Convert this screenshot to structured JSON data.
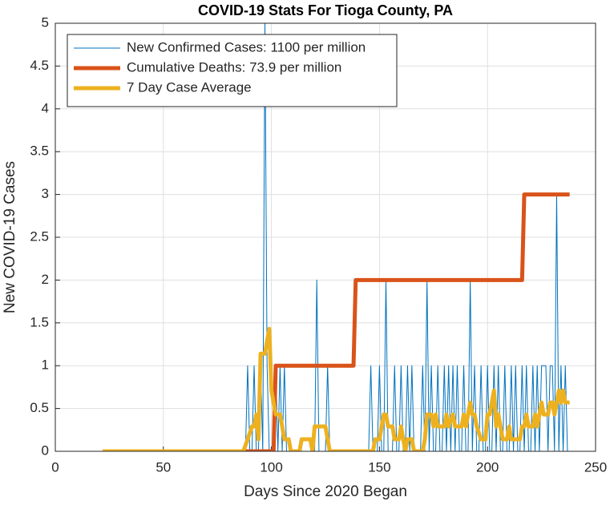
{
  "chart_data": {
    "type": "line",
    "title": "COVID-19 Stats For Tioga County, PA",
    "xlabel": "Days Since 2020 Began",
    "ylabel": "New COVID-19 Cases",
    "xlim": [
      0,
      250
    ],
    "xticks": [
      0,
      50,
      100,
      150,
      200,
      250
    ],
    "ylim": [
      0,
      5
    ],
    "yticks": [
      0,
      0.5,
      1,
      1.5,
      2,
      2.5,
      3,
      3.5,
      4,
      4.5,
      5
    ],
    "grid": true,
    "legend": "upper left",
    "series": [
      {
        "name": "New Confirmed Cases: 1100 per million",
        "color": "#0072BD",
        "width": 1,
        "x": [
          22,
          86,
          87,
          88,
          89,
          90,
          91,
          92,
          93,
          94,
          95,
          96,
          97,
          98,
          99,
          100,
          101,
          102,
          103,
          104,
          105,
          106,
          107,
          108,
          109,
          110,
          111,
          112,
          113,
          114,
          115,
          116,
          117,
          118,
          119,
          120,
          121,
          122,
          123,
          124,
          125,
          126,
          127,
          128,
          129,
          130,
          131,
          132,
          133,
          134,
          135,
          136,
          137,
          138,
          139,
          140,
          141,
          142,
          143,
          144,
          145,
          146,
          147,
          148,
          149,
          150,
          151,
          152,
          153,
          154,
          155,
          156,
          157,
          158,
          159,
          160,
          161,
          162,
          163,
          164,
          165,
          166,
          167,
          168,
          169,
          170,
          171,
          172,
          173,
          174,
          175,
          176,
          177,
          178,
          179,
          180,
          181,
          182,
          183,
          184,
          185,
          186,
          187,
          188,
          189,
          190,
          191,
          192,
          193,
          194,
          195,
          196,
          197,
          198,
          199,
          200,
          201,
          202,
          203,
          204,
          205,
          206,
          207,
          208,
          209,
          210,
          211,
          212,
          213,
          214,
          215,
          216,
          217,
          218,
          219,
          220,
          221,
          222,
          223,
          224,
          225,
          226,
          227,
          228,
          229,
          230,
          231,
          232,
          233,
          234,
          235,
          236,
          237,
          238
        ],
        "values": [
          0,
          0,
          0,
          0,
          1,
          0,
          0,
          1,
          0,
          0,
          1,
          0,
          5,
          1,
          0,
          0,
          0,
          1,
          0,
          1,
          0,
          1,
          0,
          0,
          0,
          0,
          0,
          0,
          0,
          0,
          0,
          0,
          0,
          0,
          0,
          0,
          2,
          0,
          0,
          0,
          0,
          1,
          0,
          0,
          0,
          0,
          0,
          0,
          0,
          0,
          0,
          0,
          0,
          0,
          0,
          0,
          0,
          0,
          0,
          0,
          0,
          1,
          0,
          0,
          0,
          1,
          0,
          0,
          2,
          0,
          0,
          0,
          1,
          0,
          0,
          1,
          0,
          0,
          1,
          0,
          1,
          0,
          0,
          0,
          0,
          1,
          0,
          2,
          0,
          1,
          0,
          0,
          1,
          0,
          0,
          1,
          0,
          1,
          0,
          1,
          0,
          1,
          0,
          0,
          1,
          0,
          0,
          2,
          0,
          1,
          0,
          0,
          1,
          0,
          0,
          1,
          0,
          0,
          1,
          0,
          1,
          0,
          0,
          1,
          0,
          0,
          1,
          0,
          1,
          0,
          0,
          1,
          0,
          1,
          0,
          0,
          1,
          0,
          1,
          0,
          1,
          1,
          1,
          0,
          1,
          1,
          0,
          3,
          0,
          1,
          0,
          1,
          0,
          0
        ]
      },
      {
        "name": "Cumulative Deaths: 73.9 per million",
        "color": "#D95319",
        "width": 5,
        "x": [
          22,
          101,
          102,
          138,
          139,
          216,
          217,
          238
        ],
        "values": [
          0,
          0,
          1,
          1,
          2,
          2,
          3,
          3
        ]
      },
      {
        "name": "7 Day Case Average",
        "color": "#EDB120",
        "width": 5,
        "x": [
          22,
          87,
          89,
          91,
          92,
          93,
          94,
          95,
          96,
          97,
          98,
          99,
          100,
          101,
          102,
          103,
          104,
          105,
          106,
          108,
          109,
          113,
          114,
          118,
          119,
          120,
          125,
          127,
          147,
          148,
          150,
          152,
          153,
          154,
          156,
          157,
          159,
          160,
          161,
          162,
          163,
          165,
          166,
          170,
          171,
          172,
          174,
          175,
          176,
          177,
          180,
          181,
          182,
          184,
          185,
          188,
          189,
          190,
          191,
          192,
          193,
          194,
          195,
          197,
          199,
          200,
          201,
          203,
          204,
          205,
          206,
          207,
          209,
          210,
          211,
          213,
          215,
          216,
          217,
          218,
          219,
          221,
          222,
          223,
          224,
          225,
          226,
          228,
          229,
          230,
          231,
          232,
          233,
          234,
          235,
          236,
          238
        ],
        "values": [
          0,
          0,
          0.14,
          0.29,
          0.29,
          0.43,
          0.14,
          1.14,
          1.14,
          1.14,
          1.29,
          1.43,
          0.71,
          0.57,
          0.43,
          0.43,
          0.43,
          0.29,
          0.14,
          0.14,
          0,
          0,
          0.14,
          0.14,
          0,
          0.29,
          0.29,
          0,
          0,
          0.14,
          0.14,
          0.43,
          0.43,
          0.29,
          0.29,
          0.14,
          0.14,
          0.29,
          0.14,
          0,
          0.14,
          0.14,
          0,
          0,
          0.14,
          0.43,
          0.43,
          0.29,
          0.43,
          0.29,
          0.29,
          0.43,
          0.29,
          0.43,
          0.29,
          0.29,
          0.43,
          0.29,
          0.43,
          0.57,
          0.43,
          0.43,
          0.29,
          0.14,
          0.14,
          0.43,
          0.43,
          0.71,
          0.29,
          0.43,
          0.29,
          0.14,
          0.14,
          0.29,
          0.14,
          0.14,
          0.14,
          0.29,
          0.29,
          0.43,
          0.29,
          0.29,
          0.43,
          0.29,
          0.43,
          0.57,
          0.43,
          0.43,
          0.57,
          0.57,
          0.43,
          0.57,
          0.71,
          0.57,
          0.71,
          0.57,
          0.57
        ]
      }
    ]
  }
}
